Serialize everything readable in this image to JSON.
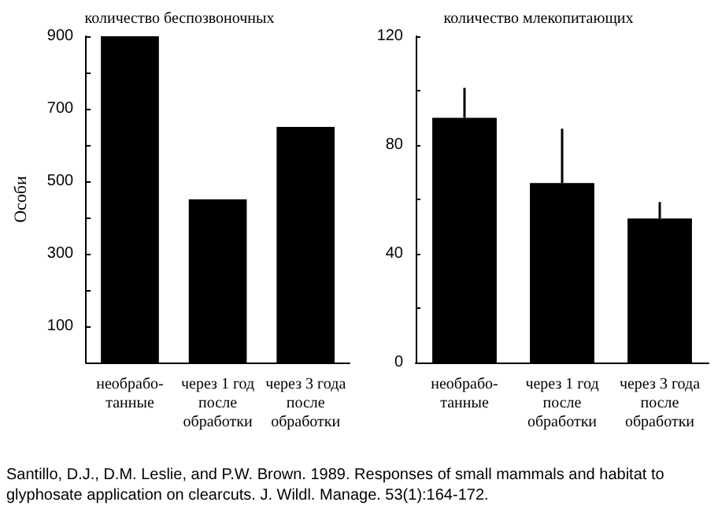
{
  "chart_data": [
    {
      "type": "bar",
      "title": "количество беспозвоночных",
      "ylabel": "Особи",
      "categories": [
        "необрабо-\nтанные",
        "через 1 год\nпосле\nобработки",
        "через 3 года\nпосле\nобработки"
      ],
      "values": [
        900,
        450,
        650
      ],
      "color": "#000000",
      "ylim": [
        0,
        900
      ],
      "yticks": [
        {
          "value": 0,
          "label": null
        },
        100,
        {
          "value": 200,
          "label": null
        },
        300,
        {
          "value": 400,
          "label": null
        },
        500,
        {
          "value": 600,
          "label": null
        },
        700,
        {
          "value": 800,
          "label": null
        },
        900
      ],
      "grid": false,
      "annotations": [
        "Santillo, D.J., D.M. Leslie, and P.W. Brown. 1989. Responses of small mammals and habitat to glyphosate application on clearcuts. J. Wildl. Manage. 53(1):164-172."
      ]
    },
    {
      "type": "bar",
      "title": "количество млекопитающих",
      "categories": [
        "необрабо-\nтанные",
        "через 1 год\nпосле\nобработки",
        "через 3 года\nпосле\nобработки"
      ],
      "values": [
        90,
        66,
        53
      ],
      "errors": [
        [
          90,
          101
        ],
        [
          66,
          86
        ],
        [
          53,
          59
        ]
      ],
      "color": "#000000",
      "ylim": [
        0,
        120
      ],
      "yticks": [
        0,
        {
          "value": 20,
          "label": null
        },
        40,
        {
          "value": 60,
          "label": null
        },
        80,
        {
          "value": 100,
          "label": null
        },
        120
      ],
      "grid": false
    }
  ]
}
